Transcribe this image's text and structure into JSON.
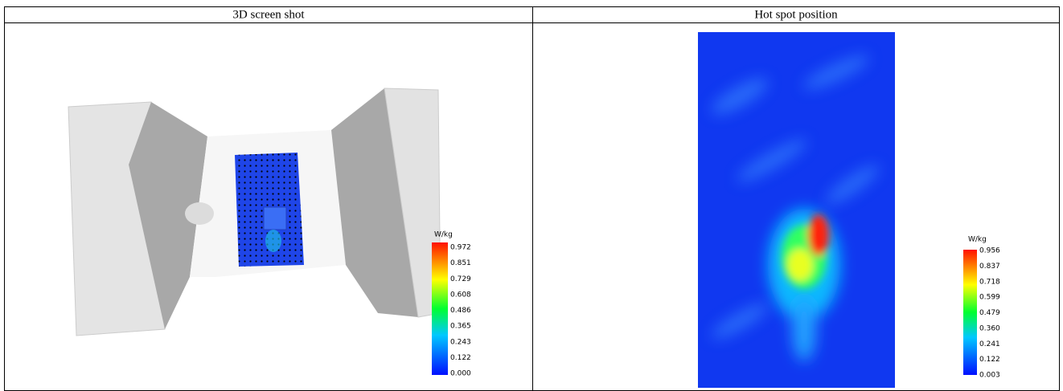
{
  "header": {
    "columns": [
      "3D screen shot",
      "Hot spot position"
    ]
  },
  "panels": [
    {
      "colorbar": {
        "unit": "W/kg",
        "labels": [
          "0.972",
          "0.851",
          "0.729",
          "0.608",
          "0.486",
          "0.365",
          "0.243",
          "0.122",
          "0.000"
        ]
      }
    },
    {
      "colorbar": {
        "unit": "W/kg",
        "labels": [
          "0.956",
          "0.837",
          "0.718",
          "0.599",
          "0.479",
          "0.360",
          "0.241",
          "0.122",
          "0.003"
        ]
      }
    }
  ]
}
